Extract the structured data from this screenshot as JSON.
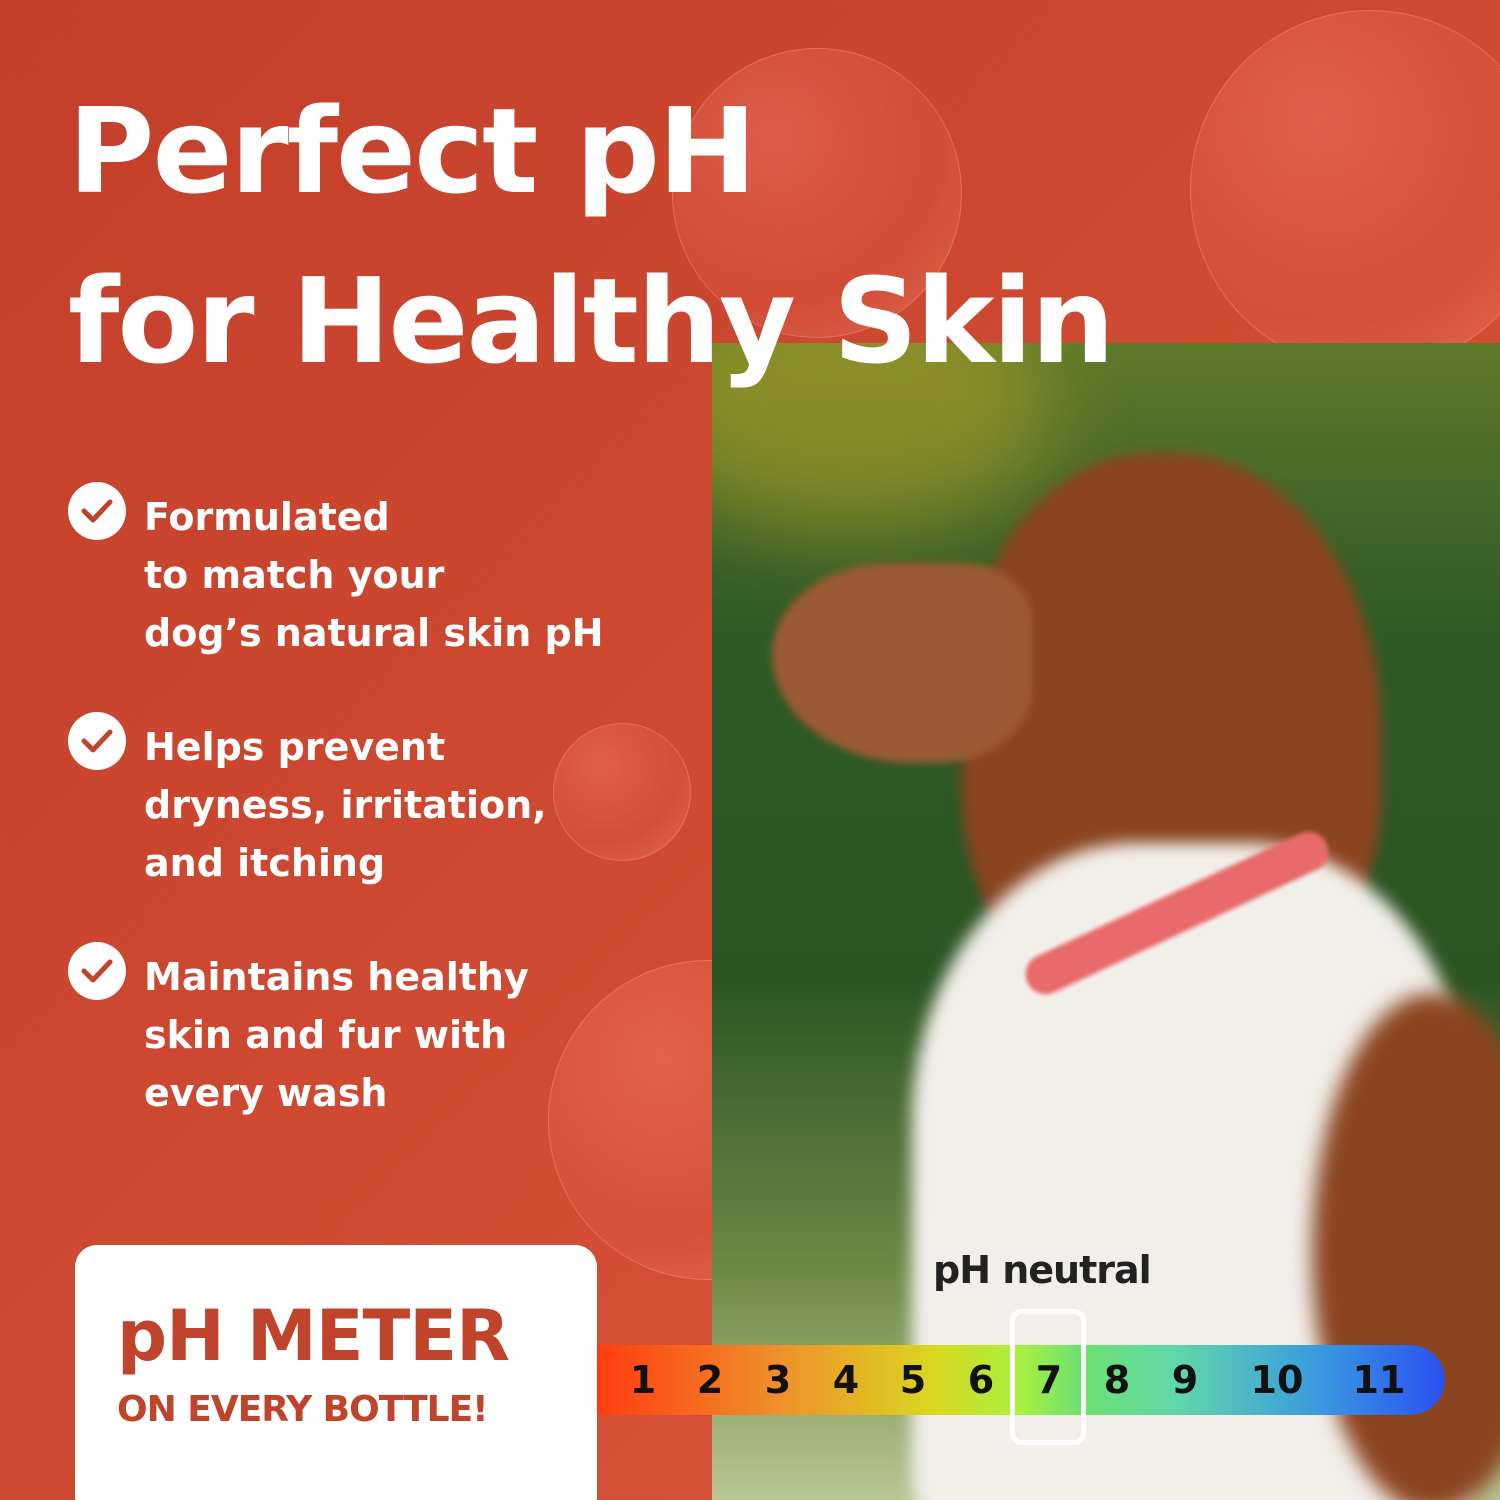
{
  "headline": {
    "line1": "Perfect pH",
    "line2": "for Healthy Skin"
  },
  "benefits": [
    {
      "icon": "check-circle-icon",
      "lines": [
        "Formulated",
        "to match your",
        "dog’s natural skin pH"
      ]
    },
    {
      "icon": "check-circle-icon",
      "lines": [
        "Helps prevent",
        "dryness, irritation,",
        "and itching"
      ]
    },
    {
      "icon": "check-circle-icon",
      "lines": [
        "Maintains healthy",
        "skin and fur with",
        "every wash"
      ]
    }
  ],
  "badge": {
    "title": "pH METER",
    "subtitle": "ON EVERY BOTTLE!"
  },
  "ph_scale": {
    "label": "pH neutral",
    "values": [
      "1",
      "2",
      "3",
      "4",
      "5",
      "6",
      "7",
      "8",
      "9",
      "10",
      "11"
    ],
    "highlighted": "7"
  },
  "colors": {
    "background": "#cf4a32",
    "accent_text": "#c0432b",
    "scale_start": "#ff3c10",
    "scale_end": "#2a50f0"
  }
}
